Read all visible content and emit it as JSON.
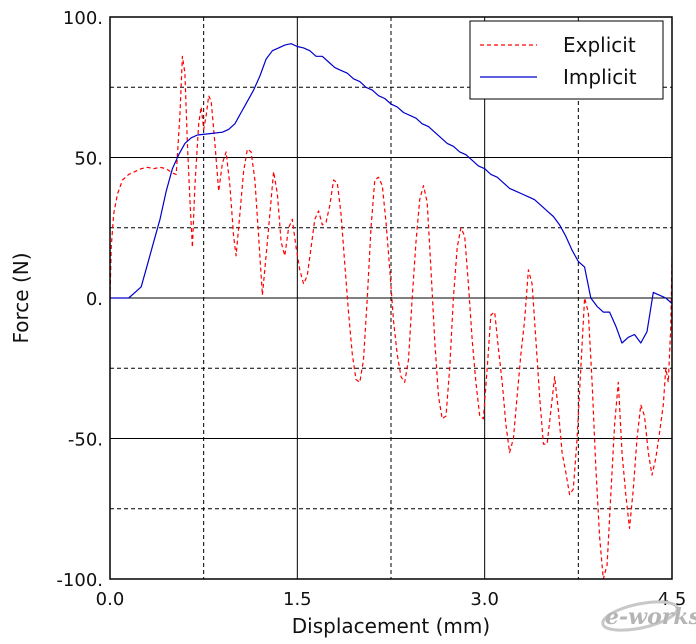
{
  "chart_data": {
    "type": "line",
    "title": "",
    "xlabel": "Displacement (mm)",
    "ylabel": "Force (N)",
    "xlim": [
      0,
      4.5
    ],
    "ylim": [
      -100,
      100
    ],
    "x_ticks": [
      0,
      1.5,
      3.0,
      4.5
    ],
    "x_tick_labels": [
      "0.0",
      "1.5",
      "3.0",
      "4.5"
    ],
    "y_ticks": [
      100,
      50,
      0,
      -50,
      -100
    ],
    "y_tick_labels": [
      "100.",
      "50.",
      "0.",
      "-50.",
      "-100."
    ],
    "major_grid": "solid",
    "minor_grid": "dashed",
    "minor_x": [
      0.75,
      2.25,
      3.75
    ],
    "minor_y": [
      75,
      25,
      -25,
      -75
    ],
    "legend_position": "top-right",
    "series": [
      {
        "name": "Explicit",
        "color": "#ff0000",
        "dash": "dashed",
        "points": [
          [
            0.0,
            0
          ],
          [
            0.01,
            18
          ],
          [
            0.03,
            30
          ],
          [
            0.06,
            37
          ],
          [
            0.1,
            42
          ],
          [
            0.15,
            44
          ],
          [
            0.2,
            45
          ],
          [
            0.25,
            46
          ],
          [
            0.3,
            46.5
          ],
          [
            0.35,
            46
          ],
          [
            0.4,
            46.5
          ],
          [
            0.45,
            46
          ],
          [
            0.5,
            44.5
          ],
          [
            0.53,
            44
          ],
          [
            0.56,
            65
          ],
          [
            0.58,
            86
          ],
          [
            0.6,
            80
          ],
          [
            0.62,
            55
          ],
          [
            0.64,
            35
          ],
          [
            0.66,
            18
          ],
          [
            0.68,
            40
          ],
          [
            0.71,
            62
          ],
          [
            0.73,
            68
          ],
          [
            0.75,
            60
          ],
          [
            0.77,
            65
          ],
          [
            0.79,
            72
          ],
          [
            0.81,
            70
          ],
          [
            0.84,
            55
          ],
          [
            0.87,
            38
          ],
          [
            0.9,
            48
          ],
          [
            0.93,
            52
          ],
          [
            0.96,
            40
          ],
          [
            0.99,
            22
          ],
          [
            1.01,
            15
          ],
          [
            1.04,
            30
          ],
          [
            1.07,
            45
          ],
          [
            1.1,
            53
          ],
          [
            1.13,
            52
          ],
          [
            1.16,
            42
          ],
          [
            1.19,
            22
          ],
          [
            1.22,
            1
          ],
          [
            1.25,
            15
          ],
          [
            1.28,
            30
          ],
          [
            1.31,
            45
          ],
          [
            1.34,
            37
          ],
          [
            1.37,
            20
          ],
          [
            1.4,
            15
          ],
          [
            1.43,
            25
          ],
          [
            1.46,
            28
          ],
          [
            1.49,
            18
          ],
          [
            1.52,
            10
          ],
          [
            1.55,
            5
          ],
          [
            1.58,
            8
          ],
          [
            1.61,
            18
          ],
          [
            1.64,
            28
          ],
          [
            1.67,
            31
          ],
          [
            1.7,
            26
          ],
          [
            1.73,
            27
          ],
          [
            1.76,
            33
          ],
          [
            1.79,
            42
          ],
          [
            1.82,
            41
          ],
          [
            1.85,
            30
          ],
          [
            1.88,
            12
          ],
          [
            1.91,
            -5
          ],
          [
            1.94,
            -20
          ],
          [
            1.97,
            -29
          ],
          [
            2.0,
            -30
          ],
          [
            2.03,
            -22
          ],
          [
            2.06,
            0
          ],
          [
            2.09,
            25
          ],
          [
            2.12,
            42
          ],
          [
            2.15,
            43
          ],
          [
            2.18,
            40
          ],
          [
            2.21,
            27
          ],
          [
            2.24,
            10
          ],
          [
            2.27,
            -8
          ],
          [
            2.3,
            -20
          ],
          [
            2.33,
            -28
          ],
          [
            2.36,
            -30
          ],
          [
            2.39,
            -22
          ],
          [
            2.42,
            0
          ],
          [
            2.45,
            20
          ],
          [
            2.48,
            35
          ],
          [
            2.51,
            40
          ],
          [
            2.54,
            34
          ],
          [
            2.57,
            10
          ],
          [
            2.6,
            -15
          ],
          [
            2.63,
            -35
          ],
          [
            2.66,
            -43
          ],
          [
            2.69,
            -42
          ],
          [
            2.72,
            -25
          ],
          [
            2.75,
            0
          ],
          [
            2.78,
            18
          ],
          [
            2.81,
            25
          ],
          [
            2.84,
            22
          ],
          [
            2.87,
            5
          ],
          [
            2.9,
            -15
          ],
          [
            2.93,
            -30
          ],
          [
            2.96,
            -42
          ],
          [
            2.99,
            -43
          ],
          [
            3.02,
            -25
          ],
          [
            3.05,
            -6
          ],
          [
            3.08,
            -5
          ],
          [
            3.11,
            -18
          ],
          [
            3.14,
            -30
          ],
          [
            3.17,
            -45
          ],
          [
            3.2,
            -55
          ],
          [
            3.23,
            -50
          ],
          [
            3.26,
            -35
          ],
          [
            3.29,
            -20
          ],
          [
            3.32,
            -8
          ],
          [
            3.35,
            10
          ],
          [
            3.38,
            5
          ],
          [
            3.41,
            -15
          ],
          [
            3.44,
            -35
          ],
          [
            3.47,
            -52
          ],
          [
            3.5,
            -52
          ],
          [
            3.53,
            -40
          ],
          [
            3.56,
            -28
          ],
          [
            3.59,
            -40
          ],
          [
            3.62,
            -55
          ],
          [
            3.65,
            -62
          ],
          [
            3.68,
            -70
          ],
          [
            3.71,
            -68
          ],
          [
            3.74,
            -50
          ],
          [
            3.77,
            -25
          ],
          [
            3.8,
            0
          ],
          [
            3.83,
            -5
          ],
          [
            3.86,
            -30
          ],
          [
            3.89,
            -60
          ],
          [
            3.92,
            -85
          ],
          [
            3.95,
            -100
          ],
          [
            3.98,
            -95
          ],
          [
            4.01,
            -70
          ],
          [
            4.04,
            -45
          ],
          [
            4.07,
            -30
          ],
          [
            4.1,
            -55
          ],
          [
            4.13,
            -70
          ],
          [
            4.16,
            -82
          ],
          [
            4.19,
            -68
          ],
          [
            4.22,
            -50
          ],
          [
            4.25,
            -38
          ],
          [
            4.28,
            -42
          ],
          [
            4.31,
            -55
          ],
          [
            4.34,
            -63
          ],
          [
            4.37,
            -57
          ],
          [
            4.4,
            -48
          ],
          [
            4.43,
            -38
          ],
          [
            4.45,
            -25
          ],
          [
            4.47,
            -30
          ],
          [
            4.49,
            -10
          ],
          [
            4.5,
            14
          ]
        ]
      },
      {
        "name": "Implicit",
        "color": "#0000cc",
        "dash": "solid",
        "points": [
          [
            0.0,
            0
          ],
          [
            0.15,
            0
          ],
          [
            0.2,
            2
          ],
          [
            0.25,
            4
          ],
          [
            0.3,
            12
          ],
          [
            0.35,
            20
          ],
          [
            0.4,
            28
          ],
          [
            0.45,
            38
          ],
          [
            0.5,
            46
          ],
          [
            0.55,
            51
          ],
          [
            0.6,
            55
          ],
          [
            0.65,
            57
          ],
          [
            0.7,
            58
          ],
          [
            0.8,
            58.5
          ],
          [
            0.9,
            59
          ],
          [
            0.95,
            60
          ],
          [
            1.0,
            62
          ],
          [
            1.05,
            66
          ],
          [
            1.1,
            70
          ],
          [
            1.15,
            74
          ],
          [
            1.2,
            79
          ],
          [
            1.25,
            85
          ],
          [
            1.3,
            88
          ],
          [
            1.35,
            89
          ],
          [
            1.4,
            90
          ],
          [
            1.45,
            90.5
          ],
          [
            1.5,
            89.5
          ],
          [
            1.55,
            89
          ],
          [
            1.6,
            88
          ],
          [
            1.65,
            86
          ],
          [
            1.7,
            86
          ],
          [
            1.75,
            84
          ],
          [
            1.8,
            82
          ],
          [
            1.85,
            81
          ],
          [
            1.9,
            80
          ],
          [
            1.95,
            78
          ],
          [
            2.0,
            77
          ],
          [
            2.05,
            75
          ],
          [
            2.1,
            74
          ],
          [
            2.15,
            72
          ],
          [
            2.2,
            71
          ],
          [
            2.25,
            69
          ],
          [
            2.3,
            68
          ],
          [
            2.35,
            66
          ],
          [
            2.4,
            65
          ],
          [
            2.45,
            64
          ],
          [
            2.5,
            62
          ],
          [
            2.55,
            61
          ],
          [
            2.6,
            59
          ],
          [
            2.65,
            57
          ],
          [
            2.7,
            55
          ],
          [
            2.75,
            54
          ],
          [
            2.8,
            52
          ],
          [
            2.85,
            51
          ],
          [
            2.9,
            49
          ],
          [
            2.95,
            47
          ],
          [
            3.0,
            46
          ],
          [
            3.05,
            44
          ],
          [
            3.1,
            43
          ],
          [
            3.15,
            41
          ],
          [
            3.2,
            39
          ],
          [
            3.25,
            38
          ],
          [
            3.3,
            37
          ],
          [
            3.35,
            36
          ],
          [
            3.4,
            35
          ],
          [
            3.45,
            33
          ],
          [
            3.5,
            31
          ],
          [
            3.55,
            29
          ],
          [
            3.6,
            26
          ],
          [
            3.65,
            22
          ],
          [
            3.7,
            17
          ],
          [
            3.75,
            13
          ],
          [
            3.8,
            11
          ],
          [
            3.85,
            0
          ],
          [
            3.9,
            -3
          ],
          [
            3.95,
            -5
          ],
          [
            4.0,
            -5
          ],
          [
            4.05,
            -10
          ],
          [
            4.1,
            -16
          ],
          [
            4.15,
            -14
          ],
          [
            4.2,
            -13
          ],
          [
            4.25,
            -16
          ],
          [
            4.3,
            -12
          ],
          [
            4.35,
            2
          ],
          [
            4.4,
            1
          ],
          [
            4.45,
            0
          ],
          [
            4.5,
            -2
          ]
        ]
      }
    ]
  },
  "watermark": "e-works"
}
